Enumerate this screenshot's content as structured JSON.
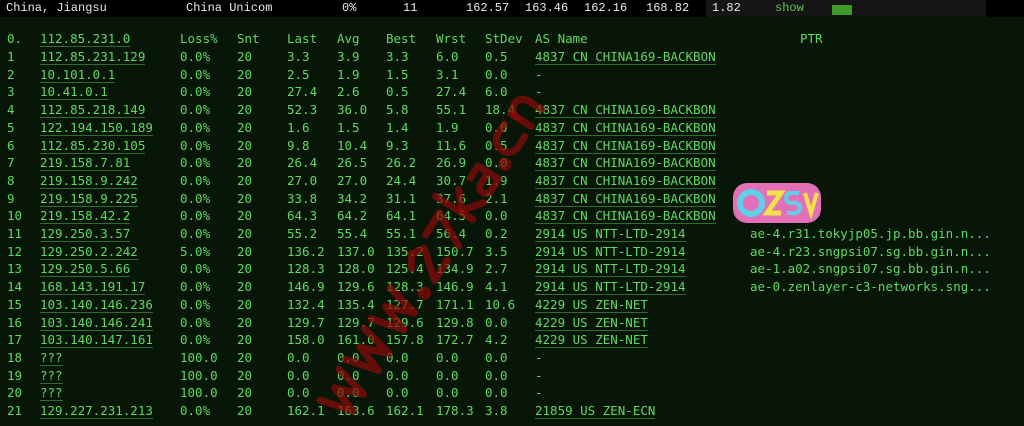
{
  "topbar": {
    "location": "China, Jiangsu",
    "isp": "China Unicom",
    "loss": "0%",
    "hops": "11",
    "last": "162.57",
    "avg": "163.46",
    "best": "162.16",
    "worst": "168.82",
    "stdev": "1.82",
    "show_label": "show"
  },
  "header": {
    "idx": "0.",
    "host": "112.85.231.0",
    "loss": "Loss%",
    "snt": "Snt",
    "last": "Last",
    "avg": "Avg",
    "best": "Best",
    "wrst": "Wrst",
    "stdev": "StDev",
    "as": "AS Name",
    "ptr": "PTR"
  },
  "rows": [
    [
      "1",
      "112.85.231.129",
      "0.0%",
      "20",
      "3.3",
      "3.9",
      "3.3",
      "6.0",
      "0.5",
      "4837  CN CHINA169-BACKBON",
      ""
    ],
    [
      "2",
      "10.101.0.1",
      "0.0%",
      "20",
      "2.5",
      "1.9",
      "1.5",
      "3.1",
      "0.0",
      "-",
      ""
    ],
    [
      "3",
      "10.41.0.1",
      "0.0%",
      "20",
      "27.4",
      "2.6",
      "0.5",
      "27.4",
      "6.0",
      "-",
      ""
    ],
    [
      "4",
      "112.85.218.149",
      "0.0%",
      "20",
      "52.3",
      "36.0",
      "5.8",
      "55.1",
      "18.4",
      "4837  CN CHINA169-BACKBON",
      ""
    ],
    [
      "5",
      "122.194.150.189",
      "0.0%",
      "20",
      "1.6",
      "1.5",
      "1.4",
      "1.9",
      "0.0",
      "4837  CN CHINA169-BACKBON",
      ""
    ],
    [
      "6",
      "112.85.230.105",
      "0.0%",
      "20",
      "9.8",
      "10.4",
      "9.3",
      "11.6",
      "0.5",
      "4837  CN CHINA169-BACKBON",
      ""
    ],
    [
      "7",
      "219.158.7.81",
      "0.0%",
      "20",
      "26.4",
      "26.5",
      "26.2",
      "26.9",
      "0.0",
      "4837  CN CHINA169-BACKBON",
      ""
    ],
    [
      "8",
      "219.158.9.242",
      "0.0%",
      "20",
      "27.0",
      "27.0",
      "24.4",
      "30.7",
      "1.9",
      "4837  CN CHINA169-BACKBON",
      ""
    ],
    [
      "9",
      "219.158.9.225",
      "0.0%",
      "20",
      "33.8",
      "34.2",
      "31.1",
      "37.6",
      "2.1",
      "4837  CN CHINA169-BACKBON",
      ""
    ],
    [
      "10",
      "219.158.42.2",
      "0.0%",
      "20",
      "64.3",
      "64.2",
      "64.1",
      "64.5",
      "0.0",
      "4837  CN CHINA169-BACKBON",
      ""
    ],
    [
      "11",
      "129.250.3.57",
      "0.0%",
      "20",
      "55.2",
      "55.4",
      "55.1",
      "56.4",
      "0.2",
      "2914  US NTT-LTD-2914",
      "ae-4.r31.tokyjp05.jp.bb.gin.n..."
    ],
    [
      "12",
      "129.250.2.242",
      "5.0%",
      "20",
      "136.2",
      "137.0",
      "135.2",
      "150.7",
      "3.5",
      "2914  US NTT-LTD-2914",
      "ae-4.r23.sngpsi07.sg.bb.gin.n..."
    ],
    [
      "13",
      "129.250.5.66",
      "0.0%",
      "20",
      "128.3",
      "128.0",
      "125.4",
      "134.9",
      "2.7",
      "2914  US NTT-LTD-2914",
      "ae-1.a02.sngpsi07.sg.bb.gin.n..."
    ],
    [
      "14",
      "168.143.191.17",
      "0.0%",
      "20",
      "146.9",
      "129.6",
      "128.3",
      "146.9",
      "4.1",
      "2914  US NTT-LTD-2914",
      "ae-0.zenlayer-c3-networks.sng..."
    ],
    [
      "15",
      "103.140.146.236",
      "0.0%",
      "20",
      "132.4",
      "135.4",
      "127.7",
      "171.1",
      "10.6",
      "4229  US ZEN-NET",
      ""
    ],
    [
      "16",
      "103.140.146.241",
      "0.0%",
      "20",
      "129.7",
      "129.7",
      "129.6",
      "129.8",
      "0.0",
      "4229  US ZEN-NET",
      ""
    ],
    [
      "17",
      "103.140.147.161",
      "0.0%",
      "20",
      "158.0",
      "161.0",
      "157.8",
      "172.7",
      "4.2",
      "4229  US ZEN-NET",
      ""
    ],
    [
      "18",
      "???",
      "100.0",
      "20",
      "0.0",
      "0.0",
      "0.0",
      "0.0",
      "0.0",
      "-",
      ""
    ],
    [
      "19",
      "???",
      "100.0",
      "20",
      "0.0",
      "0.0",
      "0.0",
      "0.0",
      "0.0",
      "-",
      ""
    ],
    [
      "20",
      "???",
      "100.0",
      "20",
      "0.0",
      "0.0",
      "0.0",
      "0.0",
      "0.0",
      "-",
      ""
    ],
    [
      "21",
      "129.227.231.213",
      "0.0%",
      "20",
      "162.1",
      "163.6",
      "162.1",
      "178.3",
      "3.8",
      "21859 US ZEN-ECN",
      ""
    ]
  ],
  "watermark": "www.27ka.cn",
  "logo": "OZSV",
  "colors": {
    "text": "#62d862",
    "background": "#071607",
    "bar": "#3e9a2a"
  }
}
